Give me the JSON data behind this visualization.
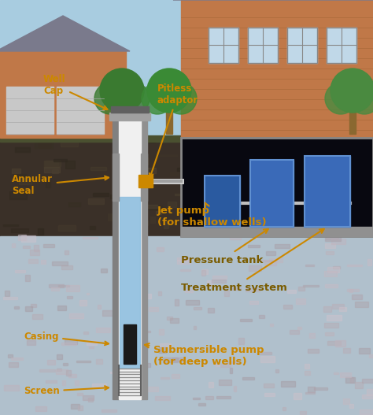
{
  "label_color": "#cc8800",
  "label_color2": "#7a5c00",
  "arrow_color": "#cc8800",
  "labels": {
    "well_cap": "Well\nCap",
    "pitless": "Pitless\nadaptor",
    "annular_seal": "Annular\nSeal",
    "jet_pump": "Jet pump\n(for shallow wells)",
    "pressure_tank": "Pressure tank",
    "treatment": "Treatment system",
    "casing": "Casing",
    "submersible": "Submersible pump\n(for deep wells)",
    "screen": "Screen"
  },
  "label_fontsize": 8.5,
  "label_fontsize2": 9.5,
  "label_fontweight": "bold",
  "sky_color": "#a8cce0",
  "soil_dark": "#4a3c2c",
  "soil_mid": "#5a4a38",
  "aquifer_color": "#b8c8d0",
  "basement_color": "#0a0a18",
  "house_body": "#c07850",
  "house_siding": "#b87040",
  "house_roof": "#8a8a9a",
  "house_window": "#c8e0f0",
  "tank_blue": "#3a6ab8",
  "tank_blue2": "#4a7ac8",
  "well_outer": "#909090",
  "well_inner_bg": "#e8e8e8",
  "well_water": "#a0c8e8",
  "well_cap_dark": "#606060",
  "pitless_orange": "#cc8800",
  "pump_dark": "#2a2a2a",
  "screen_gray": "#909090"
}
